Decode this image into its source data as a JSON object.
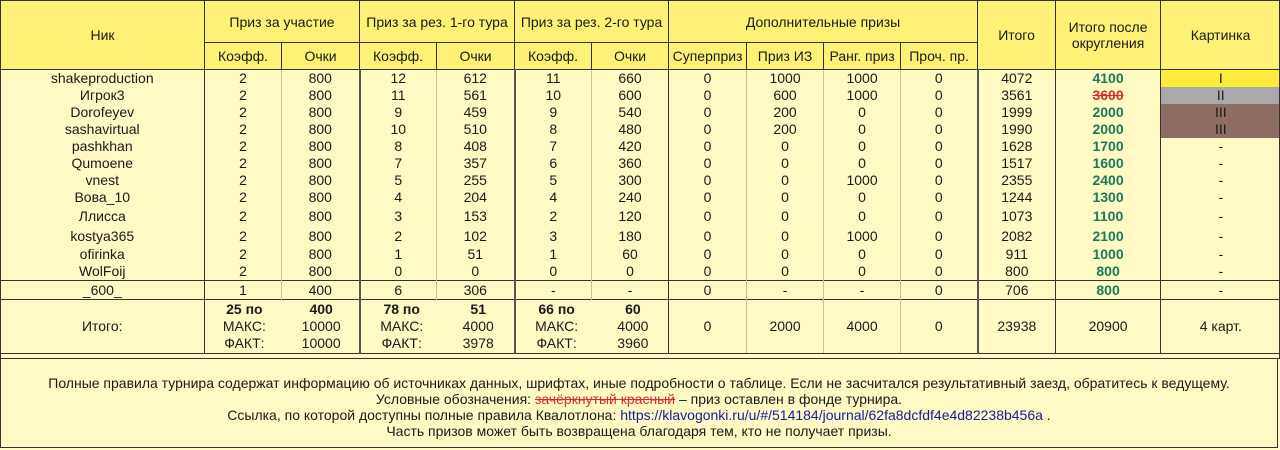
{
  "header": {
    "nick": "Ник",
    "participation": "Приз за участие",
    "round1": "Приз за рез. 1-го тура",
    "round2": "Приз за рез. 2-го тура",
    "extra": "Дополнительные призы",
    "total": "Итого",
    "total_rounded": "Итого после округления",
    "picture": "Картинка",
    "coef": "Коэфф.",
    "points": "Очки",
    "superprize": "Суперприз",
    "prize_iz": "Приз ИЗ",
    "rank_prize": "Ранг. приз",
    "other_prize": "Проч. пр."
  },
  "rows": [
    {
      "nick": "shakeproduction",
      "p_coef": "2",
      "p_pts": "800",
      "r1_coef": "12",
      "r1_pts": "612",
      "r2_coef": "11",
      "r2_pts": "660",
      "super": "0",
      "iz": "1000",
      "rank": "1000",
      "other": "0",
      "total": "4072",
      "rounded": "4100",
      "picture": "I",
      "pic_class": "pic-gold",
      "struck": false
    },
    {
      "nick": "Игрок3",
      "p_coef": "2",
      "p_pts": "800",
      "r1_coef": "11",
      "r1_pts": "561",
      "r2_coef": "10",
      "r2_pts": "600",
      "super": "0",
      "iz": "600",
      "rank": "1000",
      "other": "0",
      "total": "3561",
      "rounded": "3600",
      "picture": "II",
      "pic_class": "pic-silver",
      "struck": true
    },
    {
      "nick": "Dorofeyev",
      "p_coef": "2",
      "p_pts": "800",
      "r1_coef": "9",
      "r1_pts": "459",
      "r2_coef": "9",
      "r2_pts": "540",
      "super": "0",
      "iz": "200",
      "rank": "0",
      "other": "0",
      "total": "1999",
      "rounded": "2000",
      "picture": "III",
      "pic_class": "pic-bronze",
      "struck": false
    },
    {
      "nick": "sashavirtual",
      "p_coef": "2",
      "p_pts": "800",
      "r1_coef": "10",
      "r1_pts": "510",
      "r2_coef": "8",
      "r2_pts": "480",
      "super": "0",
      "iz": "200",
      "rank": "0",
      "other": "0",
      "total": "1990",
      "rounded": "2000",
      "picture": "III",
      "pic_class": "pic-bronze",
      "struck": false
    },
    {
      "nick": "pashkhan",
      "p_coef": "2",
      "p_pts": "800",
      "r1_coef": "8",
      "r1_pts": "408",
      "r2_coef": "7",
      "r2_pts": "420",
      "super": "0",
      "iz": "0",
      "rank": "0",
      "other": "0",
      "total": "1628",
      "rounded": "1700",
      "picture": "-",
      "pic_class": "",
      "struck": false
    },
    {
      "nick": "Qumoene",
      "p_coef": "2",
      "p_pts": "800",
      "r1_coef": "7",
      "r1_pts": "357",
      "r2_coef": "6",
      "r2_pts": "360",
      "super": "0",
      "iz": "0",
      "rank": "0",
      "other": "0",
      "total": "1517",
      "rounded": "1600",
      "picture": "-",
      "pic_class": "",
      "struck": false
    },
    {
      "nick": "vnest",
      "p_coef": "2",
      "p_pts": "800",
      "r1_coef": "5",
      "r1_pts": "255",
      "r2_coef": "5",
      "r2_pts": "300",
      "super": "0",
      "iz": "0",
      "rank": "1000",
      "other": "0",
      "total": "2355",
      "rounded": "2400",
      "picture": "-",
      "pic_class": "",
      "struck": false
    },
    {
      "nick": "Вова_10",
      "p_coef": "2",
      "p_pts": "800",
      "r1_coef": "4",
      "r1_pts": "204",
      "r2_coef": "4",
      "r2_pts": "240",
      "super": "0",
      "iz": "0",
      "rank": "0",
      "other": "0",
      "total": "1244",
      "rounded": "1300",
      "picture": "-",
      "pic_class": "",
      "struck": false
    },
    {
      "nick": "Ллисса",
      "p_coef": "2",
      "p_pts": "800",
      "r1_coef": "3",
      "r1_pts": "153",
      "r2_coef": "2",
      "r2_pts": "120",
      "super": "0",
      "iz": "0",
      "rank": "0",
      "other": "0",
      "total": "1073",
      "rounded": "1100",
      "picture": "-",
      "pic_class": "",
      "struck": false
    },
    {
      "nick": "kostya365",
      "p_coef": "2",
      "p_pts": "800",
      "r1_coef": "2",
      "r1_pts": "102",
      "r2_coef": "3",
      "r2_pts": "180",
      "super": "0",
      "iz": "0",
      "rank": "1000",
      "other": "0",
      "total": "2082",
      "rounded": "2100",
      "picture": "-",
      "pic_class": "",
      "struck": false
    },
    {
      "nick": "ofirinka",
      "p_coef": "2",
      "p_pts": "800",
      "r1_coef": "1",
      "r1_pts": "51",
      "r2_coef": "1",
      "r2_pts": "60",
      "super": "0",
      "iz": "0",
      "rank": "0",
      "other": "0",
      "total": "911",
      "rounded": "1000",
      "picture": "-",
      "pic_class": "",
      "struck": false
    },
    {
      "nick": "WolFoij",
      "p_coef": "2",
      "p_pts": "800",
      "r1_coef": "0",
      "r1_pts": "0",
      "r2_coef": "0",
      "r2_pts": "0",
      "super": "0",
      "iz": "0",
      "rank": "0",
      "other": "0",
      "total": "800",
      "rounded": "800",
      "picture": "-",
      "pic_class": "",
      "struck": false
    }
  ],
  "extra_row": {
    "nick": "_600_",
    "p_coef": "1",
    "p_pts": "400",
    "r1_coef": "6",
    "r1_pts": "306",
    "r2_coef": "-",
    "r2_pts": "-",
    "super": "0",
    "iz": "-",
    "rank": "-",
    "other": "0",
    "total": "706",
    "rounded": "800",
    "picture": "-"
  },
  "totals": {
    "label": "Итого:",
    "participation": {
      "per": "25 по",
      "per_val": "400",
      "max_label": "МАКС:",
      "max": "10000",
      "fact_label": "ФАКТ:",
      "fact": "10000"
    },
    "round1": {
      "per": "78 по",
      "per_val": "51",
      "max_label": "МАКС:",
      "max": "4000",
      "fact_label": "ФАКТ:",
      "fact": "3978"
    },
    "round2": {
      "per": "66 по",
      "per_val": "60",
      "max_label": "МАКС:",
      "max": "4000",
      "fact_label": "ФАКТ:",
      "fact": "3960"
    },
    "super": "0",
    "iz": "2000",
    "rank": "4000",
    "other": "0",
    "total": "23938",
    "rounded": "20900",
    "picture": "4 карт."
  },
  "footer": {
    "line1": "Полные правила турнира содержат информацию об источниках данных, шрифтах, иные подробности о таблице. Если не засчитался результативный заезд, обратитесь к ведущему.",
    "line2_prefix": "Условные обозначения: ",
    "line2_struck": "зачёркнутый красный",
    "line2_suffix": " – приз оставлен в фонде турнира.",
    "line3_prefix": "Ссылка, по которой доступны полные правила Квалотлона: ",
    "line3_link": "https://klavogonki.ru/u/#/514184/journal/62fa8dcfdf4e4d82238b456a",
    "line3_suffix": " .",
    "line4": "Часть призов может быть возвращена благодаря тем, кто не получает призы."
  },
  "colors": {
    "header_bg": "#fff176",
    "body_bg": "#fff9c4",
    "rounded_green": "#1b7a5b",
    "struck_red": "#d32f2f",
    "gold": "#ffeb3b",
    "silver": "#a9a9a9",
    "bronze": "#8d6e63",
    "link": "#1a1a9c"
  }
}
